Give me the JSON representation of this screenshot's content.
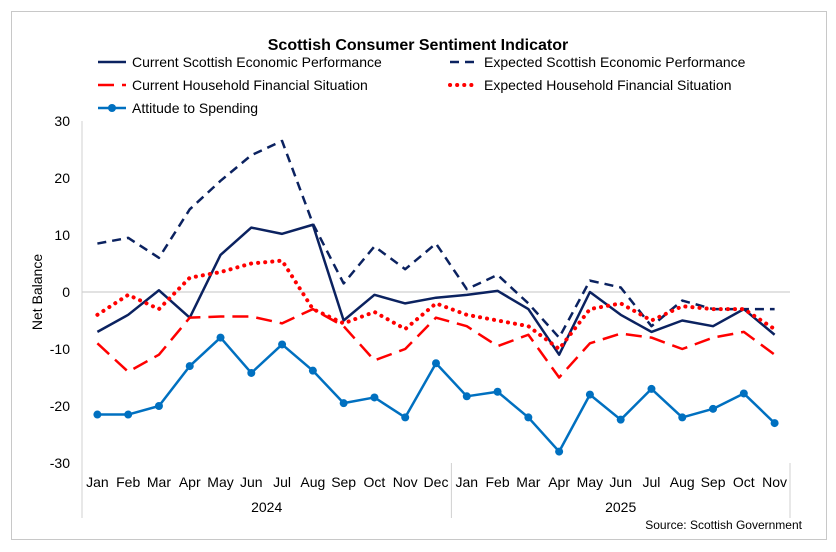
{
  "chart_data": {
    "type": "line",
    "title": "Scottish Consumer Sentiment Indicator",
    "ylabel": "Net Balance",
    "xlabel": "",
    "source": "Source: Scottish Government",
    "ylim": [
      -30,
      30
    ],
    "yticks": [
      30,
      20,
      10,
      0,
      -10,
      -20,
      -30
    ],
    "grid": false,
    "legend_position": "top",
    "categories": [
      "Jan",
      "Feb",
      "Mar",
      "Apr",
      "May",
      "Jun",
      "Jul",
      "Aug",
      "Sep",
      "Oct",
      "Nov",
      "Dec",
      "Jan",
      "Feb",
      "Mar",
      "Apr",
      "May",
      "Jun",
      "Jul",
      "Aug",
      "Sep",
      "Oct",
      "Nov"
    ],
    "years": [
      {
        "label": "2024",
        "months": 12
      },
      {
        "label": "2025",
        "months": 11
      }
    ],
    "series": [
      {
        "name": "Current Scottish Economic Performance",
        "color": "#0b2260",
        "style": "solid",
        "values": [
          -7,
          -4,
          0.3,
          -4.5,
          6.5,
          11.3,
          10.2,
          11.8,
          -5,
          -0.5,
          -2,
          -1,
          -0.5,
          0.2,
          -3,
          -11,
          0,
          -4,
          -7,
          -5,
          -6,
          -3,
          -7.5
        ]
      },
      {
        "name": "Expected Scottish Economic Performance",
        "color": "#0b2260",
        "style": "dash",
        "values": [
          8.5,
          9.5,
          6,
          14.5,
          19.5,
          24,
          26.5,
          12,
          1.5,
          8,
          4,
          8.5,
          0.5,
          3,
          -2,
          -8,
          2,
          0.8,
          -6,
          -1.5,
          -3,
          -3,
          -3
        ]
      },
      {
        "name": "Current Household Financial Situation",
        "color": "#ff0000",
        "style": "longdash",
        "values": [
          -9,
          -14,
          -11,
          -4.5,
          -4.3,
          -4.3,
          -5.5,
          -3,
          -6,
          -12,
          -10,
          -4.5,
          -6,
          -9.5,
          -7.5,
          -15,
          -9,
          -7.3,
          -8,
          -10,
          -8,
          -7,
          -11
        ]
      },
      {
        "name": "Expected Household Financial Situation",
        "color": "#ff0000",
        "style": "dot",
        "values": [
          -4,
          -0.5,
          -3,
          2.5,
          3.5,
          5,
          5.5,
          -3,
          -5.5,
          -3.5,
          -6.5,
          -2,
          -4,
          -5,
          -6,
          -10,
          -3,
          -2,
          -5,
          -2.5,
          -3,
          -3,
          -6.5
        ]
      },
      {
        "name": "Attitude to Spending",
        "color": "#0070c0",
        "style": "marker",
        "values": [
          -21.5,
          -21.5,
          -20,
          -13,
          -8,
          -14.2,
          -9.2,
          -13.8,
          -19.5,
          -18.5,
          -22,
          -12.5,
          -18.3,
          -17.5,
          -22,
          -28,
          -18,
          -22.4,
          -17,
          -22,
          -20.5,
          -17.8,
          -23
        ]
      }
    ]
  }
}
